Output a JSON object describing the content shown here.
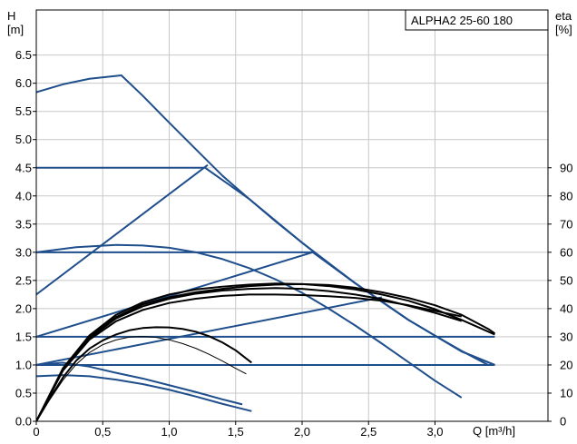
{
  "chart_data": {
    "type": "line",
    "title": "ALPHA2 25-60 180",
    "y_left_label": [
      "H",
      "[m]"
    ],
    "y_right_label": [
      "eta",
      "[%]"
    ],
    "x_label": "Q [m³/h]",
    "xlim": [
      0,
      3.85
    ],
    "ylim": [
      0,
      7.3
    ],
    "y2lim": [
      0,
      146
    ],
    "grid": true,
    "x_ticks": [
      "0",
      "0,5",
      "1,0",
      "1,5",
      "2,0",
      "2,5",
      "3,0"
    ],
    "x_tick_values": [
      0,
      0.5,
      1.0,
      1.5,
      2.0,
      2.5,
      3.0
    ],
    "y_ticks": [
      "0.0",
      "0.5",
      "1.0",
      "1.5",
      "2.0",
      "2.5",
      "3.0",
      "3.5",
      "4.0",
      "4.5",
      "5.0",
      "5.5",
      "6.0",
      "6.5"
    ],
    "y_tick_values": [
      0,
      0.5,
      1.0,
      1.5,
      2.0,
      2.5,
      3.0,
      3.5,
      4.0,
      4.5,
      5.0,
      5.5,
      6.0,
      6.5
    ],
    "y2_ticks": [
      "0",
      "10",
      "20",
      "30",
      "40",
      "50",
      "60",
      "70",
      "80",
      "90"
    ],
    "y2_tick_values": [
      0,
      10,
      20,
      30,
      40,
      50,
      60,
      70,
      80,
      90
    ],
    "colors": {
      "pump_curve": "#1f4e8c",
      "efficiency_curve": "#000000",
      "grid": "#c8c8c8"
    },
    "pump_curves": [
      {
        "points": [
          [
            0,
            5.84
          ],
          [
            0.2,
            5.98
          ],
          [
            0.4,
            6.08
          ],
          [
            0.6,
            6.13
          ],
          [
            0.64,
            6.14
          ],
          [
            0.8,
            5.78
          ],
          [
            1.0,
            5.3
          ],
          [
            1.2,
            4.83
          ],
          [
            1.4,
            4.36
          ],
          [
            1.6,
            3.95
          ],
          [
            1.8,
            3.55
          ],
          [
            2.0,
            3.17
          ],
          [
            2.2,
            2.8
          ],
          [
            2.4,
            2.45
          ],
          [
            2.6,
            2.12
          ],
          [
            2.8,
            1.8
          ],
          [
            3.0,
            1.52
          ],
          [
            3.2,
            1.25
          ],
          [
            3.4,
            1.0
          ]
        ]
      },
      {
        "points": [
          [
            0,
            4.5
          ],
          [
            1.27,
            4.5
          ],
          [
            1.6,
            3.95
          ],
          [
            2.0,
            3.17
          ],
          [
            2.4,
            2.45
          ],
          [
            2.8,
            1.8
          ],
          [
            3.2,
            1.24
          ],
          [
            3.45,
            1.0
          ]
        ]
      },
      {
        "points": [
          [
            0,
            3.0
          ],
          [
            0.3,
            3.09
          ],
          [
            0.6,
            3.13
          ],
          [
            0.8,
            3.12
          ],
          [
            1.0,
            3.08
          ],
          [
            1.2,
            3.0
          ],
          [
            1.4,
            2.88
          ],
          [
            1.6,
            2.72
          ],
          [
            1.8,
            2.52
          ],
          [
            2.0,
            2.28
          ],
          [
            2.2,
            2.0
          ],
          [
            2.4,
            1.7
          ],
          [
            2.6,
            1.38
          ],
          [
            2.8,
            1.05
          ],
          [
            3.0,
            0.72
          ],
          [
            3.2,
            0.42
          ]
        ]
      },
      {
        "points": [
          [
            0,
            3.0
          ],
          [
            2.08,
            3.0
          ],
          [
            2.4,
            2.45
          ],
          [
            2.8,
            1.8
          ],
          [
            3.2,
            1.24
          ],
          [
            3.45,
            1.0
          ]
        ]
      },
      {
        "points": [
          [
            0,
            1.5
          ],
          [
            3.45,
            1.5
          ]
        ]
      },
      {
        "points": [
          [
            0,
            0.8
          ],
          [
            0.2,
            0.82
          ],
          [
            0.4,
            0.8
          ],
          [
            0.6,
            0.74
          ],
          [
            0.8,
            0.66
          ],
          [
            1.0,
            0.56
          ],
          [
            1.2,
            0.44
          ],
          [
            1.4,
            0.31
          ],
          [
            1.62,
            0.18
          ]
        ]
      },
      {
        "points": [
          [
            0,
            1.0
          ],
          [
            0.2,
            1.04
          ],
          [
            0.4,
            0.97
          ],
          [
            0.6,
            0.86
          ],
          [
            0.8,
            0.76
          ],
          [
            1.0,
            0.64
          ],
          [
            1.2,
            0.52
          ],
          [
            1.4,
            0.39
          ],
          [
            1.55,
            0.3
          ]
        ]
      },
      {
        "points": [
          [
            0,
            2.25
          ],
          [
            1.29,
            4.55
          ]
        ]
      },
      {
        "points": [
          [
            0,
            1.5
          ],
          [
            2.08,
            3.0
          ]
        ]
      },
      {
        "points": [
          [
            0,
            1.0
          ],
          [
            2.6,
            2.2
          ]
        ]
      },
      {
        "points": [
          [
            0,
            1.0
          ],
          [
            3.45,
            1.0
          ]
        ]
      }
    ],
    "efficiency_curves": [
      {
        "points": [
          [
            0,
            0
          ],
          [
            0.2,
            18
          ],
          [
            0.4,
            29
          ],
          [
            0.6,
            35.5
          ],
          [
            0.8,
            39.5
          ],
          [
            1.0,
            42
          ],
          [
            1.2,
            43.5
          ],
          [
            1.4,
            44.5
          ],
          [
            1.6,
            45
          ],
          [
            1.8,
            45
          ],
          [
            2.0,
            44.8
          ],
          [
            2.2,
            44.4
          ],
          [
            2.4,
            43.8
          ],
          [
            2.6,
            42.8
          ],
          [
            2.8,
            41.2
          ],
          [
            3.0,
            39.2
          ],
          [
            3.2,
            37.2
          ]
        ]
      },
      {
        "points": [
          [
            0,
            0
          ],
          [
            0.2,
            18.5
          ],
          [
            0.4,
            30
          ],
          [
            0.6,
            37
          ],
          [
            0.8,
            41.5
          ],
          [
            1.0,
            44
          ],
          [
            1.2,
            45.8
          ],
          [
            1.4,
            47
          ],
          [
            1.6,
            48
          ],
          [
            1.8,
            48.5
          ],
          [
            2.0,
            48.7
          ],
          [
            2.2,
            48.4
          ],
          [
            2.4,
            47.4
          ],
          [
            2.6,
            45.8
          ],
          [
            2.8,
            43.8
          ],
          [
            3.0,
            41.2
          ],
          [
            3.2,
            37.8
          ],
          [
            3.4,
            32.8
          ],
          [
            3.45,
            31.2
          ]
        ]
      },
      {
        "points": [
          [
            0,
            0
          ],
          [
            0.2,
            18.8
          ],
          [
            0.4,
            30.5
          ],
          [
            0.6,
            37.8
          ],
          [
            0.8,
            42.2
          ],
          [
            1.0,
            45
          ],
          [
            1.2,
            46.8
          ],
          [
            1.4,
            47.8
          ],
          [
            1.6,
            48.5
          ],
          [
            1.8,
            48.9
          ],
          [
            2.0,
            48.7
          ],
          [
            2.2,
            48
          ],
          [
            2.4,
            46.8
          ],
          [
            2.6,
            45
          ],
          [
            2.8,
            42.8
          ],
          [
            3.0,
            39.8
          ],
          [
            3.2,
            36
          ],
          [
            3.45,
            30.8
          ]
        ]
      },
      {
        "points": [
          [
            0,
            0
          ],
          [
            0.2,
            18
          ],
          [
            0.4,
            29.5
          ],
          [
            0.6,
            36.5
          ],
          [
            0.8,
            40.8
          ],
          [
            1.0,
            43.5
          ],
          [
            1.2,
            45.3
          ],
          [
            1.4,
            46.4
          ],
          [
            1.6,
            47
          ],
          [
            1.8,
            47.3
          ],
          [
            2.0,
            47
          ],
          [
            2.2,
            46.2
          ],
          [
            2.4,
            45
          ],
          [
            2.6,
            43.4
          ],
          [
            2.8,
            41
          ],
          [
            3.0,
            38.5
          ],
          [
            3.2,
            35.6
          ]
        ]
      },
      {
        "points": [
          [
            0,
            0
          ],
          [
            0.1,
            8
          ],
          [
            0.2,
            15.5
          ],
          [
            0.3,
            21.5
          ],
          [
            0.4,
            25.8
          ],
          [
            0.5,
            28.7
          ],
          [
            0.6,
            30.8
          ],
          [
            0.7,
            32.3
          ],
          [
            0.8,
            33.1
          ],
          [
            0.9,
            33.4
          ],
          [
            1.0,
            33.3
          ],
          [
            1.1,
            32.8
          ],
          [
            1.2,
            31.8
          ],
          [
            1.3,
            30.2
          ],
          [
            1.4,
            28
          ],
          [
            1.5,
            25.2
          ],
          [
            1.62,
            20.8
          ]
        ]
      },
      {
        "points": [
          [
            0,
            0
          ],
          [
            0.1,
            7.6
          ],
          [
            0.2,
            14.6
          ],
          [
            0.3,
            20.2
          ],
          [
            0.4,
            24.4
          ],
          [
            0.5,
            27.2
          ],
          [
            0.6,
            28.9
          ],
          [
            0.7,
            29.9
          ],
          [
            0.8,
            30.1
          ],
          [
            0.9,
            29.8
          ],
          [
            1.0,
            28.9
          ],
          [
            1.1,
            27.6
          ],
          [
            1.2,
            25.9
          ],
          [
            1.3,
            23.8
          ],
          [
            1.4,
            21.4
          ],
          [
            1.5,
            18.8
          ],
          [
            1.58,
            16.8
          ]
        ]
      }
    ]
  }
}
